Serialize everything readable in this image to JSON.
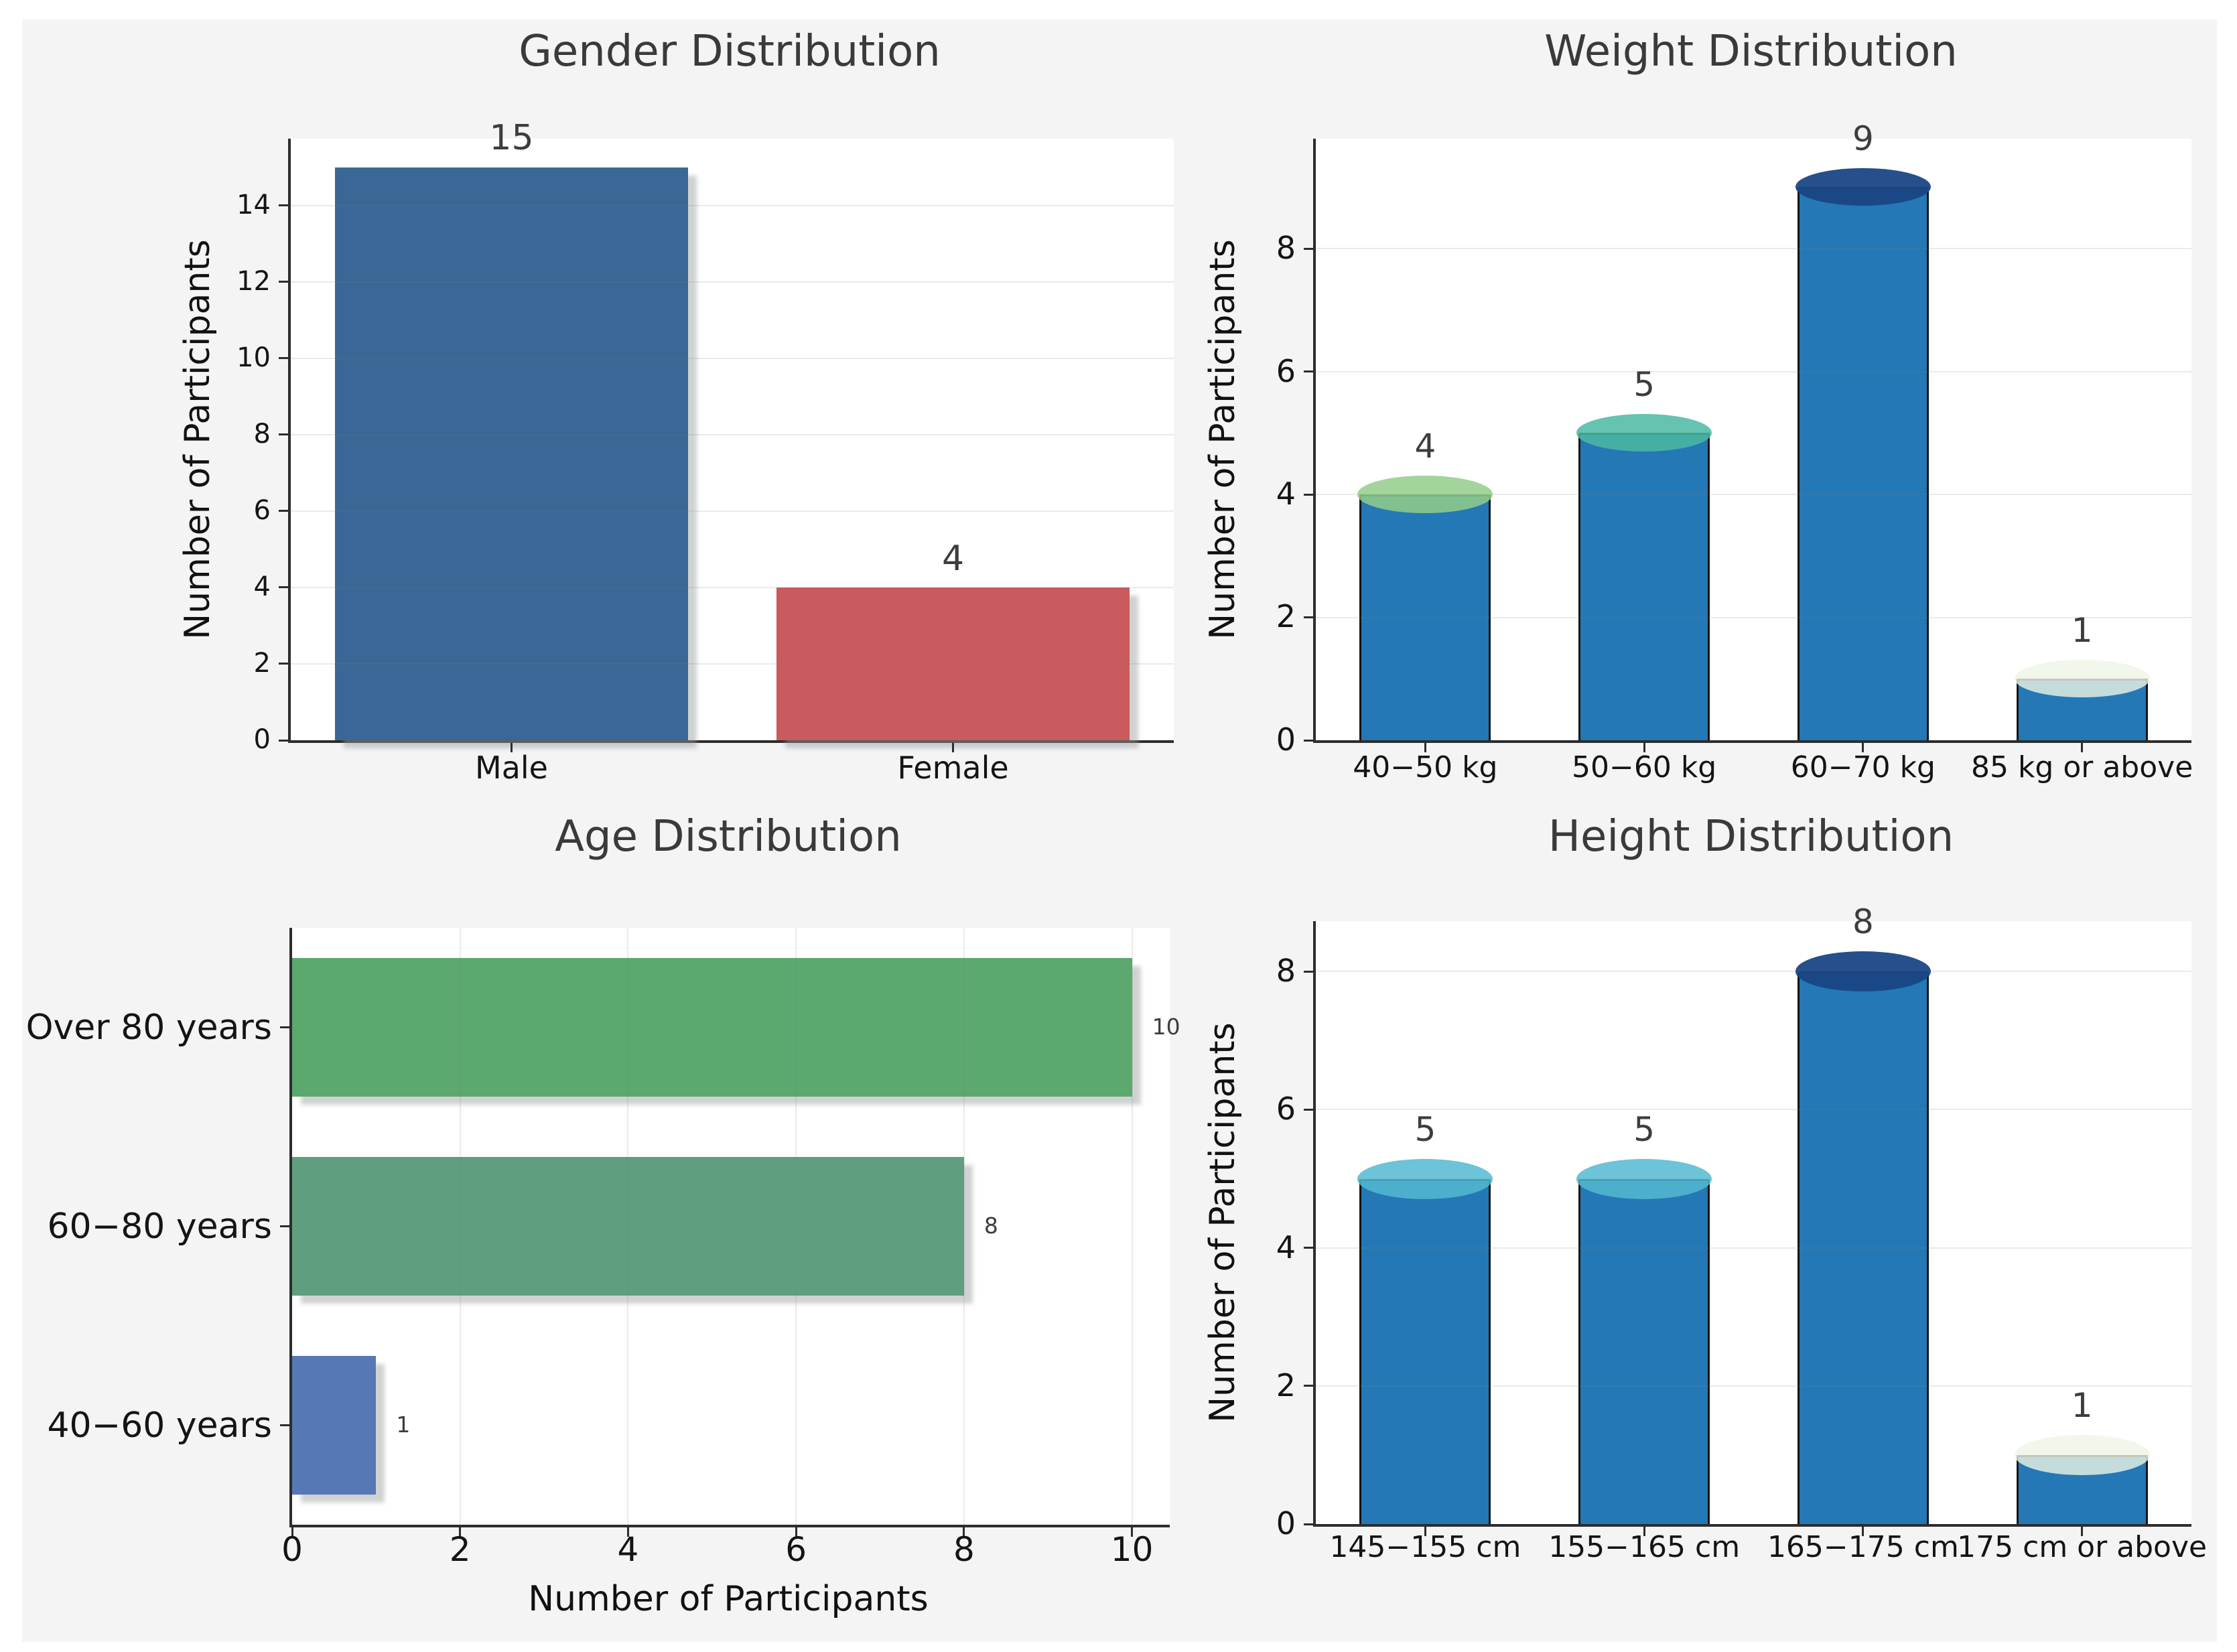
{
  "figure": {
    "page_background": "#ffffff",
    "background": "#f4f4f5",
    "grid_color": "#e8eaea",
    "spine_color": "#2d2d2d",
    "title_color": "#3a3a3a",
    "tick_label_color": "#141414",
    "value_label_color": "#3d3d3d"
  },
  "chart_data": [
    {
      "type": "bar",
      "orientation": "vertical",
      "title": "Gender Distribution",
      "ylabel": "Number of Participants",
      "xlabel": "",
      "categories": [
        "Male",
        "Female"
      ],
      "values": [
        15,
        4
      ],
      "value_labels": [
        "15",
        "4"
      ],
      "bar_colors": [
        "#3a6795",
        "#c95a5d"
      ],
      "yticks": [
        0,
        2,
        4,
        6,
        8,
        10,
        12,
        14
      ],
      "ylim": [
        0,
        15.75
      ],
      "bar_width_frac": 0.8,
      "grid": "horizontal",
      "legend": "none"
    },
    {
      "type": "cylinder",
      "orientation": "vertical",
      "title": "Weight Distribution",
      "ylabel": "Number of Participants",
      "xlabel": "",
      "categories": [
        "40−50 kg",
        "50−60 kg",
        "60−70 kg",
        "85 kg or above"
      ],
      "values": [
        4,
        5,
        9,
        1
      ],
      "value_labels": [
        "4",
        "5",
        "9",
        "1"
      ],
      "body_color": "#2478b5",
      "outline_color": "#141414",
      "top_colors": [
        "rgba(146,204,139,0.85)",
        "rgba(75,185,162,0.85)",
        "rgba(26,70,133,0.95)",
        "rgba(237,245,230,0.8)"
      ],
      "yticks": [
        0,
        2,
        4,
        6,
        8
      ],
      "ylim": [
        0,
        9.79
      ],
      "bar_width_frac": 0.6,
      "grid": "horizontal",
      "legend": "none"
    },
    {
      "type": "bar",
      "orientation": "horizontal",
      "title": "Age Distribution",
      "ylabel": "",
      "xlabel": "Number of Participants",
      "categories": [
        "Over 80 years",
        "60−80 years",
        "40−60 years"
      ],
      "values": [
        10,
        8,
        1
      ],
      "value_labels": [
        "10",
        "8",
        "1"
      ],
      "bar_colors": [
        "#5ba96f",
        "#5f9f80",
        "#5678b4"
      ],
      "xticks": [
        0,
        2,
        4,
        6,
        8,
        10
      ],
      "xlim": [
        0,
        10.45
      ],
      "bar_height_frac": 0.7,
      "grid": "vertical",
      "legend": "none"
    },
    {
      "type": "cylinder",
      "orientation": "vertical",
      "title": "Height Distribution",
      "ylabel": "Number of Participants",
      "xlabel": "",
      "categories": [
        "145−155 cm",
        "155−165 cm",
        "165−175 cm",
        "175 cm or above"
      ],
      "values": [
        5,
        5,
        8,
        1
      ],
      "value_labels": [
        "5",
        "5",
        "8",
        "1"
      ],
      "body_color": "#2478b5",
      "outline_color": "#141414",
      "top_colors": [
        "rgba(84,185,208,0.85)",
        "rgba(84,185,208,0.85)",
        "rgba(26,70,133,0.95)",
        "rgba(237,245,230,0.8)"
      ],
      "yticks": [
        0,
        2,
        4,
        6,
        8
      ],
      "ylim": [
        0,
        8.73
      ],
      "bar_width_frac": 0.6,
      "grid": "horizontal",
      "legend": "none"
    }
  ]
}
